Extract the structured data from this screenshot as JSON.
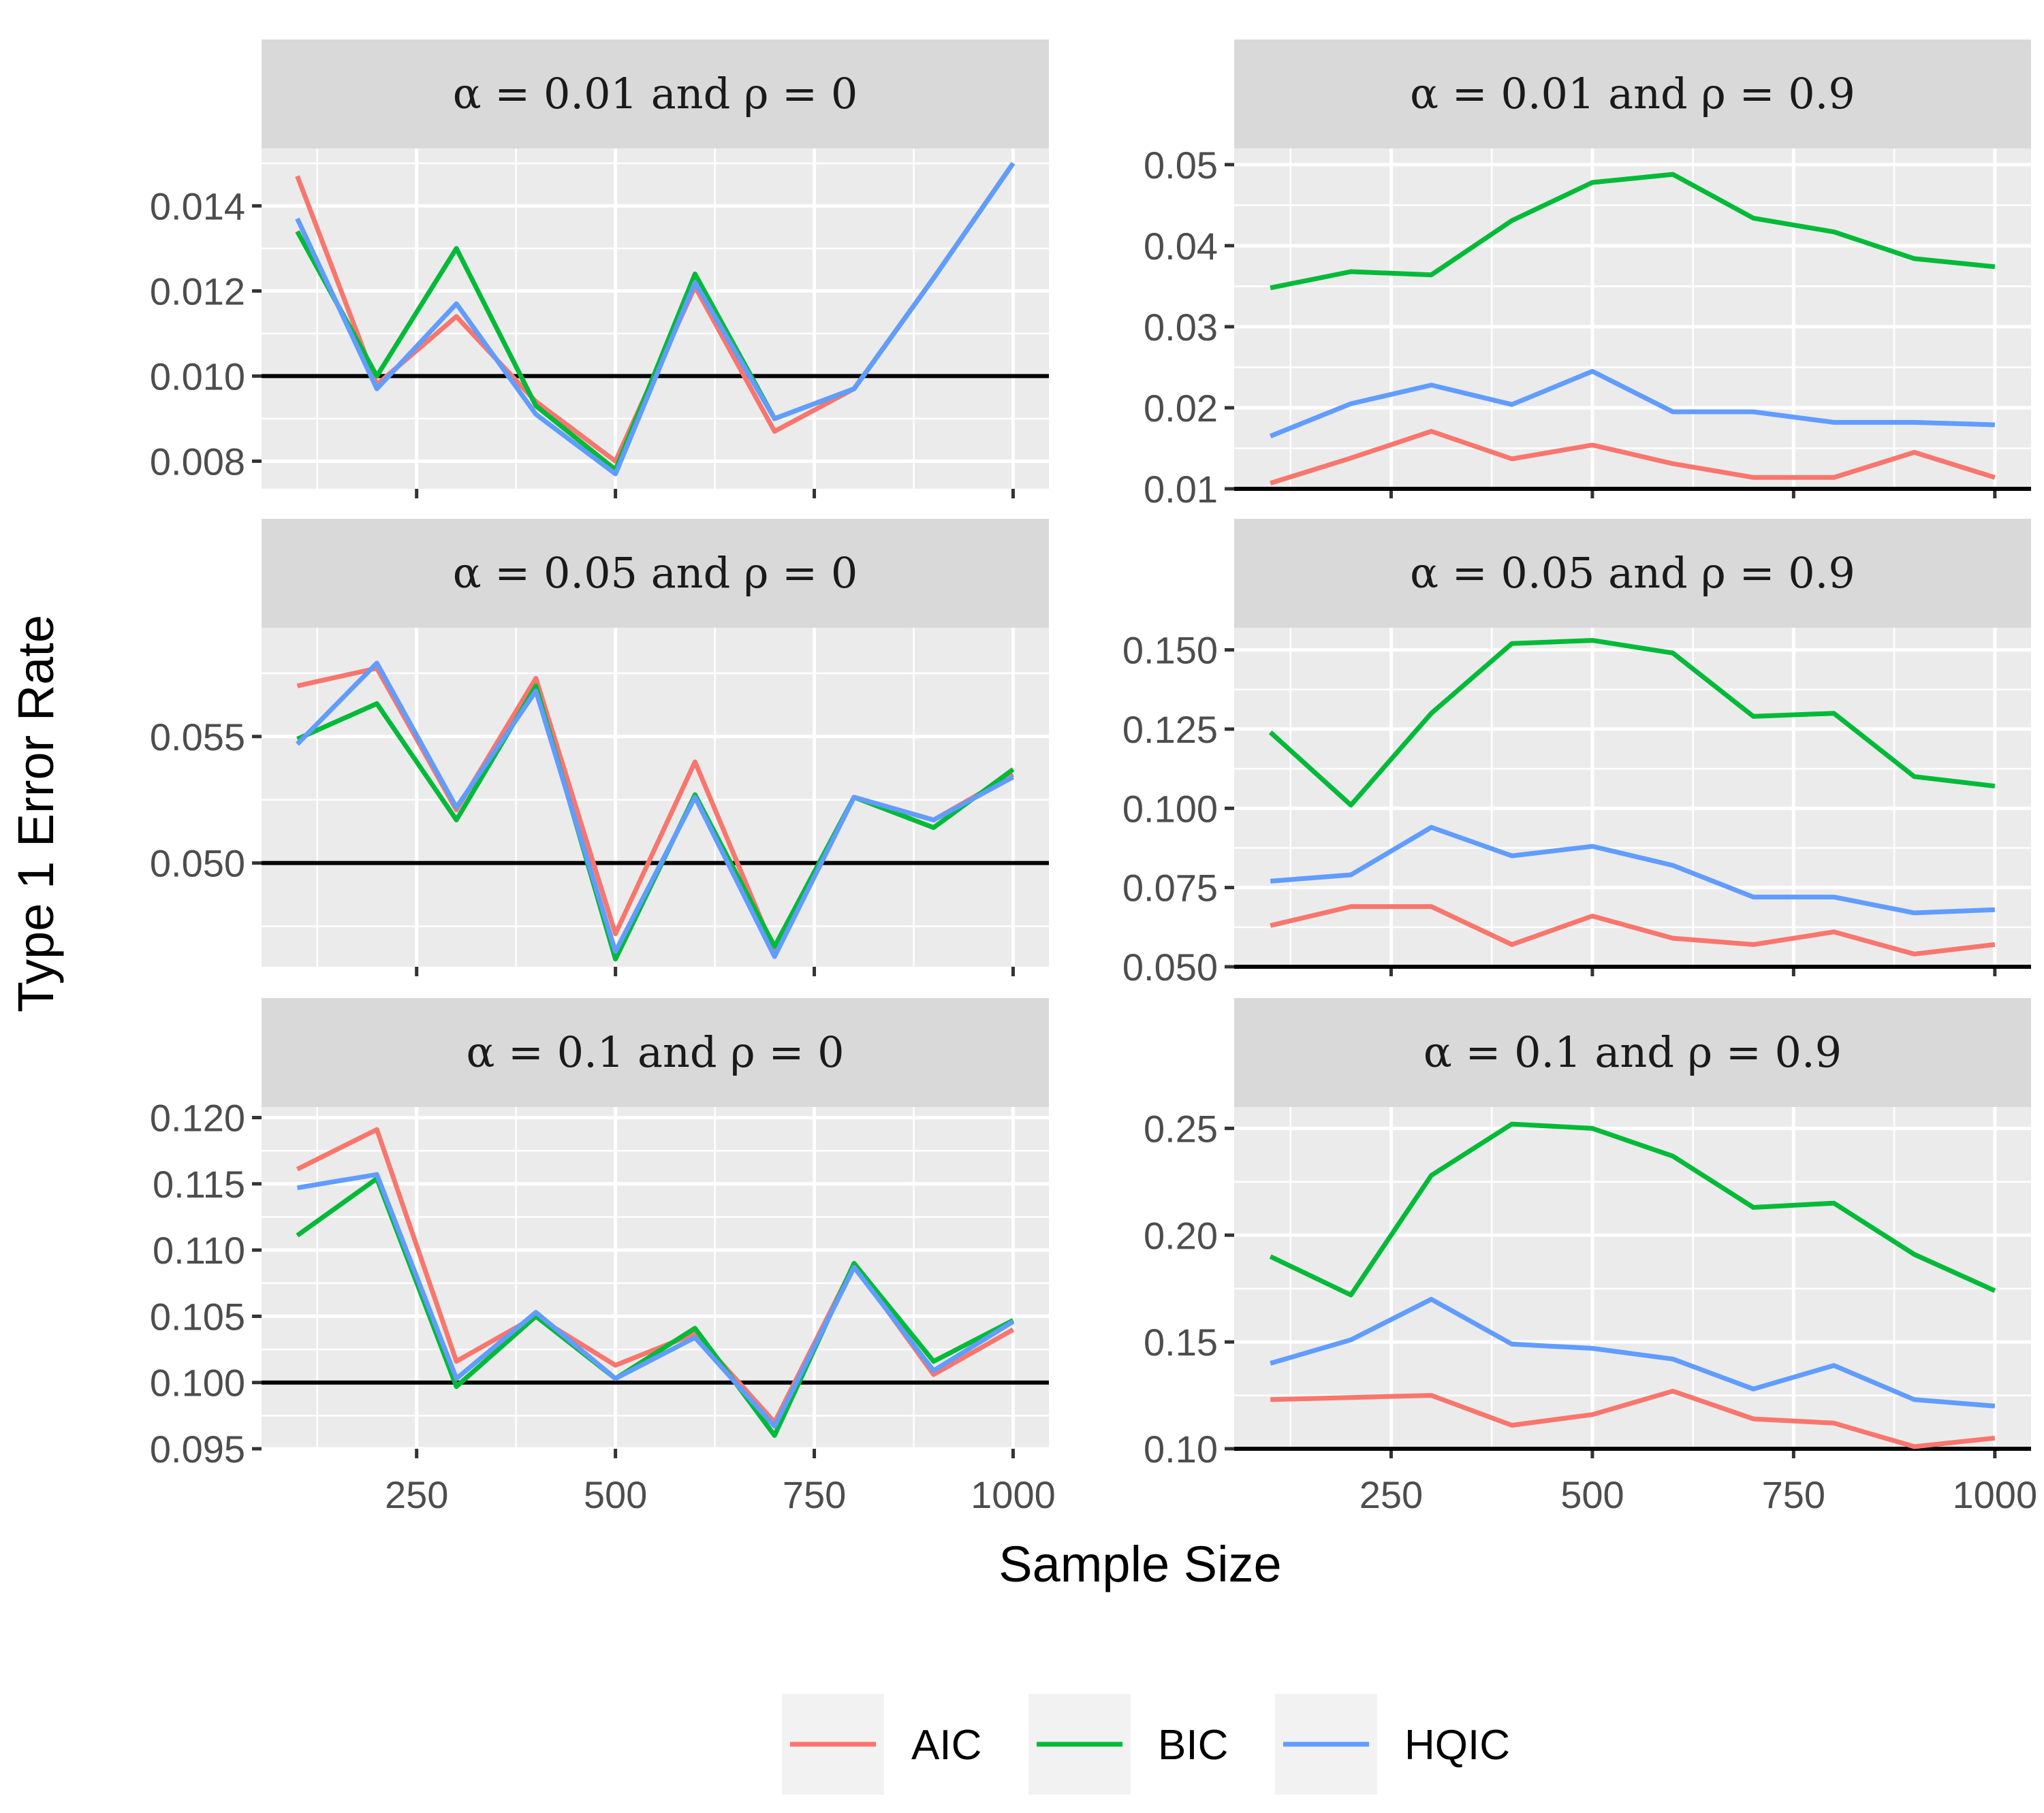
{
  "chart_data": {
    "type": "line",
    "xlabel": "Sample Size",
    "ylabel": "Type 1 Error Rate",
    "x": [
      100,
      200,
      300,
      400,
      500,
      600,
      700,
      800,
      900,
      1000
    ],
    "xlim": [
      55,
      1045
    ],
    "xticks": [
      250,
      500,
      750,
      1000
    ],
    "xtick_labels": [
      "250",
      "500",
      "750",
      "1000"
    ],
    "grid": true,
    "legend": {
      "position": "bottom",
      "entries": [
        {
          "name": "AIC",
          "color": "#f8766d"
        },
        {
          "name": "BIC",
          "color": "#00ba38"
        },
        {
          "name": "HQIC",
          "color": "#619cff"
        }
      ]
    },
    "panels": [
      {
        "title": "α = 0.01 and ρ = 0",
        "alpha": "0.01",
        "rho": "0",
        "reference_line": 0.01,
        "ylim": [
          0.00735,
          0.01535
        ],
        "yticks": [
          0.008,
          0.01,
          0.012,
          0.014
        ],
        "ytick_labels": [
          "0.008",
          "0.010",
          "0.012",
          "0.014"
        ],
        "series": [
          {
            "name": "AIC",
            "values": [
              0.0147,
              0.0098,
              0.0114,
              0.0094,
              0.008,
              0.0121,
              0.0087,
              0.0097,
              0.0123,
              0.015
            ]
          },
          {
            "name": "BIC",
            "values": [
              0.0134,
              0.01,
              0.013,
              0.0093,
              0.0078,
              0.0124,
              0.009,
              0.0097,
              0.0123,
              0.015
            ]
          },
          {
            "name": "HQIC",
            "values": [
              0.0137,
              0.0097,
              0.0117,
              0.0091,
              0.0077,
              0.0122,
              0.009,
              0.0097,
              0.0123,
              0.015
            ]
          }
        ]
      },
      {
        "title": "α = 0.01 and ρ = 0.9",
        "alpha": "0.01",
        "rho": "0.9",
        "reference_line": 0.01,
        "ylim": [
          0.01,
          0.052
        ],
        "yticks": [
          0.01,
          0.02,
          0.03,
          0.04,
          0.05
        ],
        "ytick_labels": [
          "0.01",
          "0.02",
          "0.03",
          "0.04",
          "0.05"
        ],
        "series": [
          {
            "name": "AIC",
            "values": [
              0.0107,
              0.0138,
              0.0171,
              0.0137,
              0.0154,
              0.0131,
              0.0114,
              0.0114,
              0.0145,
              0.0114
            ]
          },
          {
            "name": "BIC",
            "values": [
              0.0348,
              0.0368,
              0.0364,
              0.0431,
              0.0478,
              0.0488,
              0.0434,
              0.0417,
              0.0384,
              0.0374
            ]
          },
          {
            "name": "HQIC",
            "values": [
              0.0165,
              0.0205,
              0.0228,
              0.0204,
              0.0245,
              0.0195,
              0.0195,
              0.0182,
              0.0182,
              0.0179
            ]
          }
        ]
      },
      {
        "title": "α = 0.05 and ρ = 0",
        "alpha": "0.05",
        "rho": "0",
        "reference_line": 0.05,
        "ylim": [
          0.0459,
          0.0593
        ],
        "yticks": [
          0.05,
          0.055
        ],
        "ytick_labels": [
          "0.050",
          "0.055"
        ],
        "series": [
          {
            "name": "AIC",
            "values": [
              0.057,
              0.0577,
              0.0521,
              0.0573,
              0.0472,
              0.054,
              0.0465,
              0.0526,
              0.0517,
              0.0535
            ]
          },
          {
            "name": "BIC",
            "values": [
              0.0549,
              0.0563,
              0.0517,
              0.057,
              0.0462,
              0.0527,
              0.0467,
              0.0526,
              0.0514,
              0.0537
            ]
          },
          {
            "name": "HQIC",
            "values": [
              0.0547,
              0.0579,
              0.0522,
              0.0568,
              0.0465,
              0.0526,
              0.0463,
              0.0526,
              0.0517,
              0.0534
            ]
          }
        ]
      },
      {
        "title": "α = 0.05 and ρ = 0.9",
        "alpha": "0.05",
        "rho": "0.9",
        "reference_line": 0.05,
        "ylim": [
          0.05,
          0.157
        ],
        "yticks": [
          0.05,
          0.075,
          0.1,
          0.125,
          0.15
        ],
        "ytick_labels": [
          "0.050",
          "0.075",
          "0.100",
          "0.125",
          "0.150"
        ],
        "series": [
          {
            "name": "AIC",
            "values": [
              0.063,
              0.069,
              0.069,
              0.057,
              0.066,
              0.059,
              0.057,
              0.061,
              0.054,
              0.057
            ]
          },
          {
            "name": "BIC",
            "values": [
              0.124,
              0.101,
              0.13,
              0.152,
              0.153,
              0.149,
              0.129,
              0.13,
              0.11,
              0.107
            ]
          },
          {
            "name": "HQIC",
            "values": [
              0.077,
              0.079,
              0.094,
              0.085,
              0.088,
              0.082,
              0.072,
              0.072,
              0.067,
              0.068
            ]
          }
        ]
      },
      {
        "title": "α = 0.1 and ρ = 0",
        "alpha": "0.1",
        "rho": "0",
        "reference_line": 0.1,
        "ylim": [
          0.095,
          0.1208
        ],
        "yticks": [
          0.095,
          0.1,
          0.105,
          0.11,
          0.115,
          0.12
        ],
        "ytick_labels": [
          "0.095",
          "0.100",
          "0.105",
          "0.110",
          "0.115",
          "0.120"
        ],
        "series": [
          {
            "name": "AIC",
            "values": [
              0.1161,
              0.1191,
              0.1016,
              0.105,
              0.1013,
              0.1037,
              0.097,
              0.1089,
              0.1006,
              0.104
            ]
          },
          {
            "name": "BIC",
            "values": [
              0.1111,
              0.1154,
              0.0997,
              0.105,
              0.1003,
              0.1041,
              0.096,
              0.109,
              0.1016,
              0.1047
            ]
          },
          {
            "name": "HQIC",
            "values": [
              0.1147,
              0.1157,
              0.1003,
              0.1053,
              0.1003,
              0.1034,
              0.0967,
              0.1087,
              0.1009,
              0.1046
            ]
          }
        ]
      },
      {
        "title": "α = 0.1 and ρ = 0.9",
        "alpha": "0.1",
        "rho": "0.9",
        "reference_line": 0.1,
        "ylim": [
          0.1,
          0.26
        ],
        "yticks": [
          0.1,
          0.15,
          0.2,
          0.25
        ],
        "ytick_labels": [
          "0.10",
          "0.15",
          "0.20",
          "0.25"
        ],
        "series": [
          {
            "name": "AIC",
            "values": [
              0.123,
              0.124,
              0.125,
              0.111,
              0.116,
              0.127,
              0.114,
              0.112,
              0.101,
              0.105
            ]
          },
          {
            "name": "BIC",
            "values": [
              0.19,
              0.172,
              0.228,
              0.252,
              0.25,
              0.237,
              0.213,
              0.215,
              0.191,
              0.174
            ]
          },
          {
            "name": "HQIC",
            "values": [
              0.14,
              0.151,
              0.17,
              0.149,
              0.147,
              0.142,
              0.128,
              0.139,
              0.123,
              0.12
            ]
          }
        ]
      }
    ]
  }
}
